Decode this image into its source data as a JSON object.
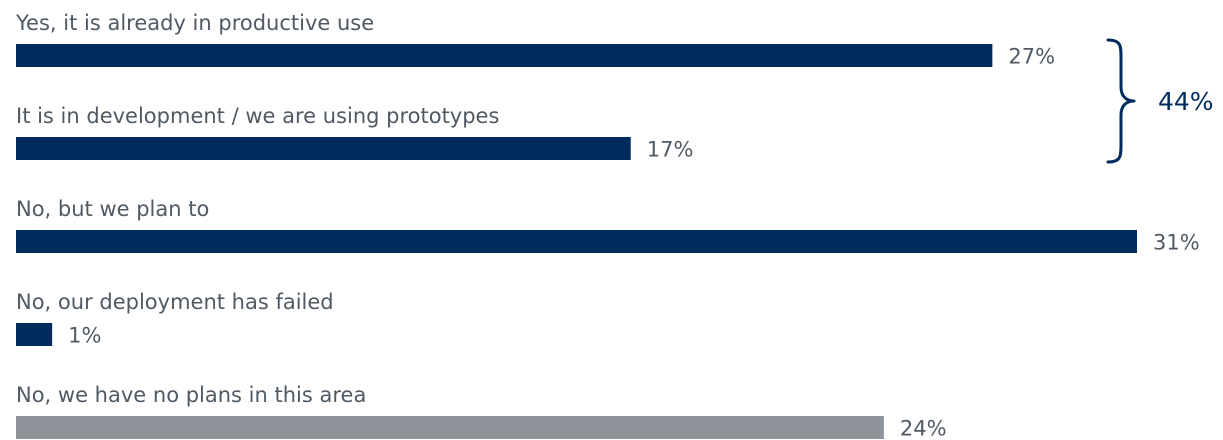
{
  "chart_data": {
    "type": "bar",
    "orientation": "horizontal",
    "categories": [
      "Yes, it is already in productive use",
      "It is in development / we are using prototypes",
      "No, but we plan to",
      "No, our deployment has failed",
      "No, we have no plans in this area"
    ],
    "values": [
      27,
      17,
      31,
      1,
      24
    ],
    "value_labels": [
      "27%",
      "17%",
      "31%",
      "1%",
      "24%"
    ],
    "bar_colors": [
      "#002b5c",
      "#002b5c",
      "#002b5c",
      "#002b5c",
      "#8f949a"
    ],
    "xlim": [
      0,
      31
    ],
    "grid": false,
    "legend": "none",
    "annotations": [
      {
        "type": "brace",
        "spans_categories": [
          0,
          1
        ],
        "text": "44%",
        "color": "#002b5c"
      }
    ]
  }
}
